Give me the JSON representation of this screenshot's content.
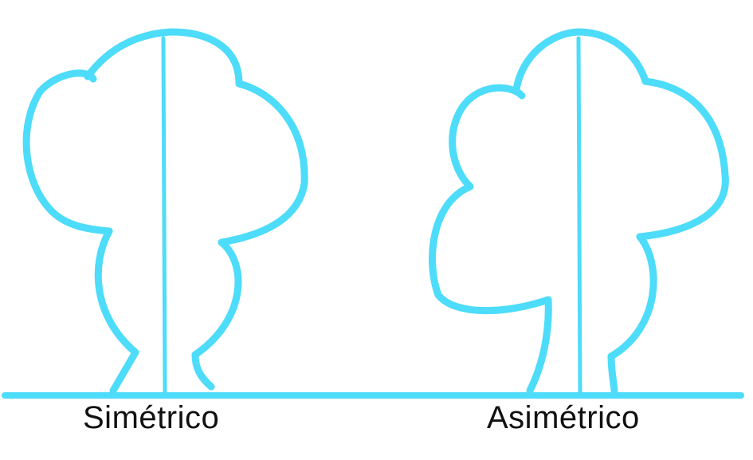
{
  "labels": {
    "symmetric": "Simétrico",
    "asymmetric": "Asimétrico"
  },
  "colors": {
    "stroke": "#4ddcf9",
    "text": "#111111",
    "background": "#ffffff"
  }
}
